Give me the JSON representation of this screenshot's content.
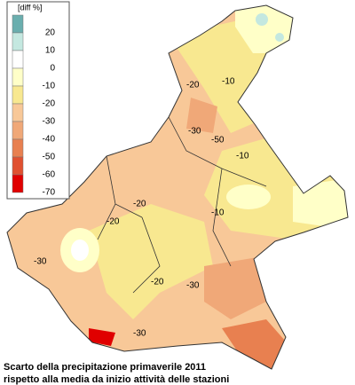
{
  "legend": {
    "title": "[diff %]",
    "items": [
      {
        "label": "20",
        "color": "#6aaeae"
      },
      {
        "label": "10",
        "color": "#c4e8e0"
      },
      {
        "label": "0",
        "color": "#ffffff"
      },
      {
        "label": "-10",
        "color": "#ffffc8"
      },
      {
        "label": "-20",
        "color": "#f8e890"
      },
      {
        "label": "-30",
        "color": "#f8c898"
      },
      {
        "label": "-40",
        "color": "#f0a878"
      },
      {
        "label": "-50",
        "color": "#e88050"
      },
      {
        "label": "-60",
        "color": "#e05030"
      },
      {
        "label": "-70",
        "color": "#e00000"
      }
    ]
  },
  "map": {
    "contour_labels": [
      "-10",
      "-20",
      "-30",
      "-50",
      "-10",
      "-20",
      "-10",
      "-30",
      "-20",
      "-30",
      "-30",
      "-20"
    ]
  },
  "caption": {
    "line1": "Scarto della precipitazione primaverile 2011",
    "line2": "rispetto alla media da inizio attività delle stazioni"
  }
}
